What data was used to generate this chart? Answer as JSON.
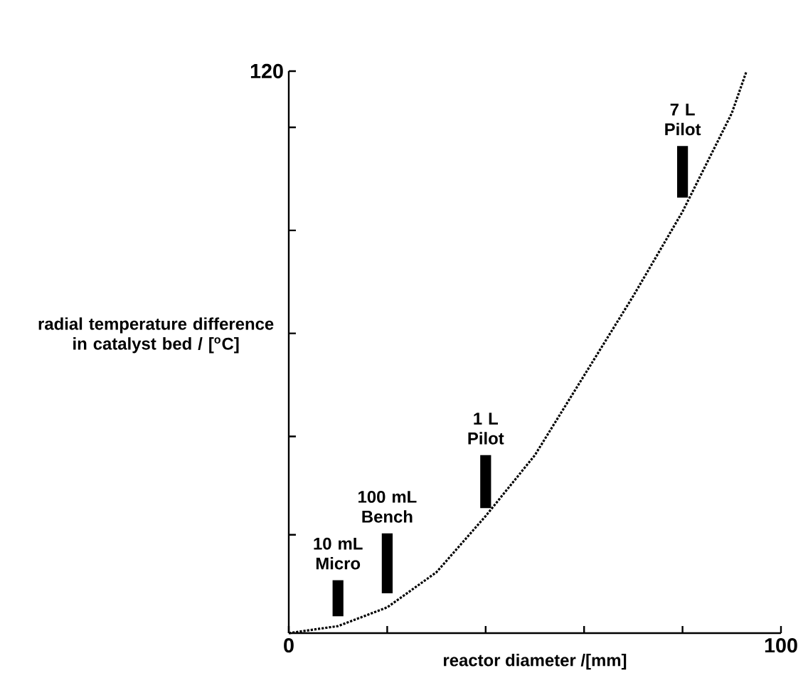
{
  "chart_data": {
    "type": "bar",
    "xlabel": "reactor diameter /[mm]",
    "ylabel": "radial temperature difference in catalyst bed / [$^{o}$C]",
    "xlim": [
      0,
      100
    ],
    "ylim": [
      0,
      120
    ],
    "xticks": [
      0,
      {
        "value": 20,
        "label": null
      },
      {
        "value": 40,
        "label": null
      },
      {
        "value": 60,
        "label": null
      },
      {
        "value": 80,
        "label": null
      },
      100
    ],
    "yticks": [
      {
        "value": 21,
        "label": null
      },
      {
        "value": 42,
        "label": null
      },
      {
        "value": 64,
        "label": null
      },
      {
        "value": 86,
        "label": null
      },
      {
        "value": 108,
        "label": null
      },
      120
    ],
    "series": [
      {
        "color": "#000000",
        "x": [
          10,
          20,
          40,
          80
        ],
        "base": [
          3.6,
          8.5,
          26.7,
          93
        ],
        "values": [
          7.7,
          12.8,
          11.3,
          11
        ]
      },
      {
        "type": "line",
        "color": "#000000",
        "line_style": "dotted",
        "x": [
          0,
          10,
          20,
          30,
          40,
          50,
          60,
          70,
          80,
          90,
          93
        ],
        "values": [
          0,
          1.5,
          5.5,
          13,
          25,
          38,
          55,
          72,
          90,
          111,
          120
        ]
      }
    ],
    "annotations": [
      {
        "text": "10 mL Micro",
        "x": 10,
        "y": 11.3
      },
      {
        "text": "100 mL Bench",
        "x": 20,
        "y": 21.3
      },
      {
        "text": "1 L Pilot",
        "x": 40,
        "y": 38
      },
      {
        "text": "7 L Pilot",
        "x": 80,
        "y": 104
      }
    ]
  }
}
